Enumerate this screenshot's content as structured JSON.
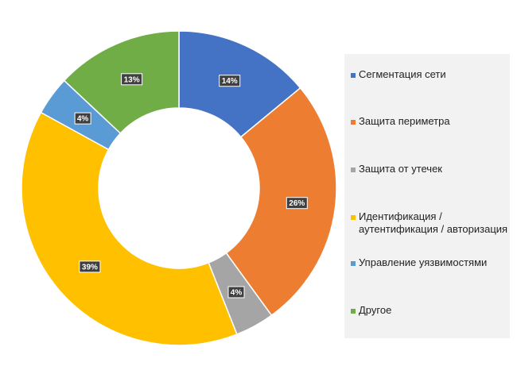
{
  "chart_data": {
    "type": "pie",
    "subtype": "donut",
    "categories": [
      "Сегментация сети",
      "Защита периметра",
      "Защита от утечек",
      "Идентификация /\nаутентификация / авторизация",
      "Управление уязвимостями",
      "Другое"
    ],
    "values": [
      14,
      26,
      4,
      39,
      4,
      13
    ],
    "data_labels": [
      "14%",
      "26%",
      "4%",
      "39%",
      "4%",
      "13%"
    ],
    "colors": [
      "#4472c4",
      "#ed7d31",
      "#a5a5a5",
      "#ffc000",
      "#5b9bd5",
      "#70ad47"
    ],
    "legend_position": "right"
  }
}
